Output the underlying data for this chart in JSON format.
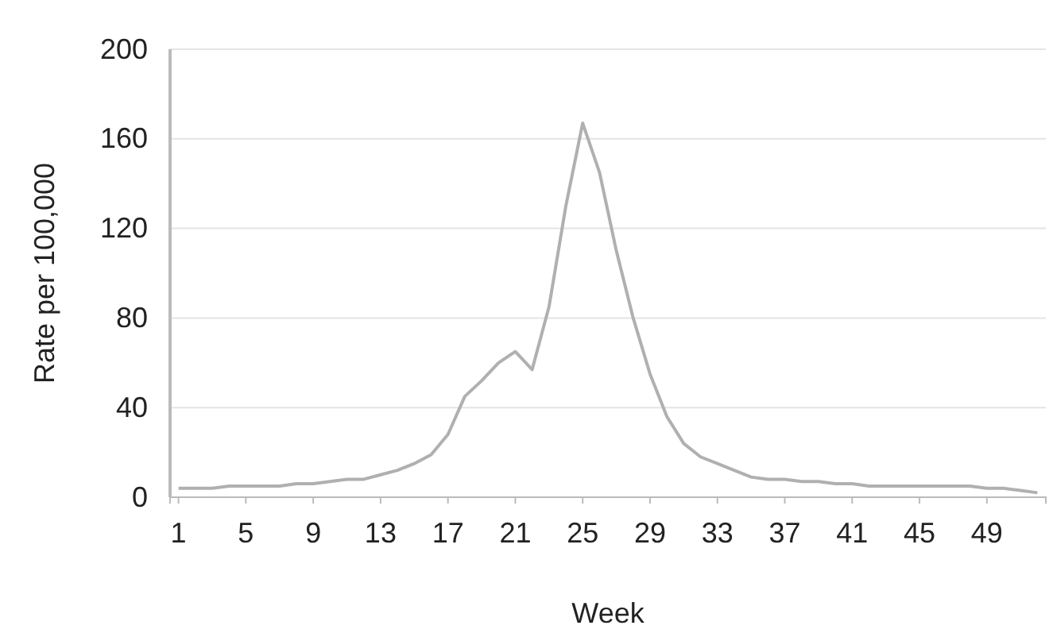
{
  "chart_data": {
    "type": "line",
    "xlabel": "Week",
    "ylabel": "Rate per 100,000",
    "x": [
      1,
      2,
      3,
      4,
      5,
      6,
      7,
      8,
      9,
      10,
      11,
      12,
      13,
      14,
      15,
      16,
      17,
      18,
      19,
      20,
      21,
      22,
      23,
      24,
      25,
      26,
      27,
      28,
      29,
      30,
      31,
      32,
      33,
      34,
      35,
      36,
      37,
      38,
      39,
      40,
      41,
      42,
      43,
      44,
      45,
      46,
      47,
      48,
      49,
      50,
      51,
      52
    ],
    "series": [
      {
        "color": "#b0b0b0",
        "values": [
          4,
          4,
          4,
          5,
          5,
          5,
          5,
          6,
          6,
          7,
          8,
          8,
          10,
          12,
          15,
          19,
          28,
          45,
          52,
          60,
          65,
          57,
          85,
          130,
          167,
          145,
          110,
          80,
          55,
          36,
          24,
          18,
          15,
          12,
          9,
          8,
          8,
          7,
          7,
          6,
          6,
          5,
          5,
          5,
          5,
          5,
          5,
          5,
          4,
          4,
          3,
          2
        ]
      }
    ],
    "xlim": [
      0.5,
      52.5
    ],
    "xticks": [
      1,
      5,
      9,
      13,
      17,
      21,
      25,
      29,
      33,
      37,
      41,
      45,
      49
    ],
    "ylim": [
      0,
      200
    ],
    "yticks": [
      0,
      40,
      80,
      120,
      160,
      200
    ],
    "grid": "y",
    "marker": "none"
  }
}
